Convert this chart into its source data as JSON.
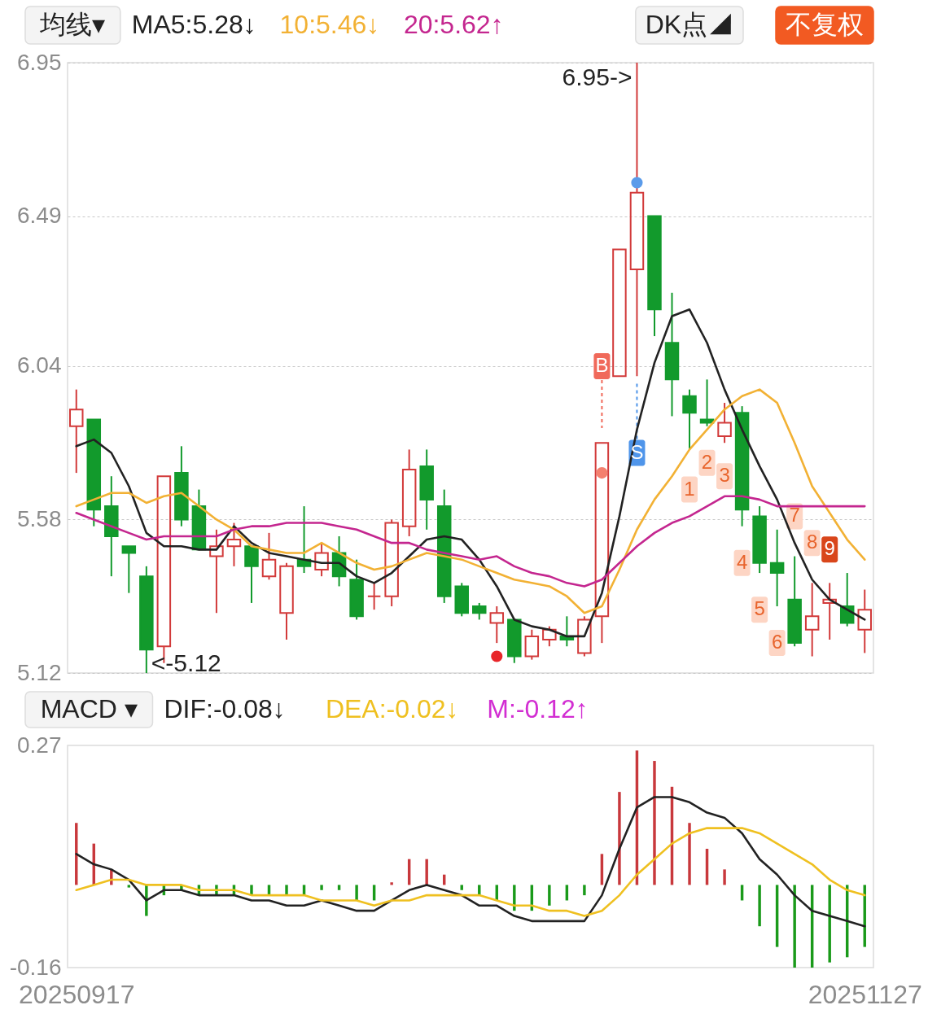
{
  "chart_data": [
    {
      "type": "candlestick",
      "categories": [
        "20250917",
        null,
        null,
        null,
        null,
        null,
        null,
        null,
        null,
        null,
        null,
        null,
        null,
        null,
        null,
        null,
        null,
        null,
        null,
        null,
        null,
        null,
        null,
        null,
        null,
        null,
        null,
        null,
        null,
        null,
        null,
        null,
        null,
        null,
        null,
        null,
        null,
        null,
        null,
        null,
        null,
        null,
        null,
        null,
        null,
        "20251127"
      ],
      "ohlc": [
        [
          5.86,
          5.97,
          5.72,
          5.91
        ],
        [
          5.88,
          5.88,
          5.56,
          5.61
        ],
        [
          5.62,
          5.71,
          5.41,
          5.53
        ],
        [
          5.5,
          5.5,
          5.36,
          5.48
        ],
        [
          5.41,
          5.44,
          5.12,
          5.19
        ],
        [
          5.2,
          5.71,
          5.15,
          5.71
        ],
        [
          5.72,
          5.8,
          5.56,
          5.58
        ],
        [
          5.62,
          5.67,
          5.49,
          5.49
        ],
        [
          5.47,
          5.55,
          5.3,
          5.5
        ],
        [
          5.5,
          5.57,
          5.44,
          5.52
        ],
        [
          5.5,
          5.5,
          5.33,
          5.44
        ],
        [
          5.41,
          5.54,
          5.4,
          5.46
        ],
        [
          5.3,
          5.45,
          5.22,
          5.44
        ],
        [
          5.46,
          5.62,
          5.42,
          5.44
        ],
        [
          5.43,
          5.51,
          5.41,
          5.48
        ],
        [
          5.48,
          5.53,
          5.38,
          5.41
        ],
        [
          5.4,
          5.46,
          5.28,
          5.29
        ],
        [
          5.35,
          5.39,
          5.31,
          5.35
        ],
        [
          5.35,
          5.58,
          5.32,
          5.57
        ],
        [
          5.56,
          5.79,
          5.53,
          5.73
        ],
        [
          5.74,
          5.79,
          5.55,
          5.64
        ],
        [
          5.62,
          5.67,
          5.33,
          5.35
        ],
        [
          5.38,
          5.39,
          5.29,
          5.3
        ],
        [
          5.32,
          5.33,
          5.28,
          5.3
        ],
        [
          5.27,
          5.32,
          5.21,
          5.3
        ],
        [
          5.28,
          5.28,
          5.15,
          5.17
        ],
        [
          5.17,
          5.25,
          5.16,
          5.23
        ],
        [
          5.22,
          5.26,
          5.2,
          5.25
        ],
        [
          5.23,
          5.29,
          5.2,
          5.22
        ],
        [
          5.18,
          5.29,
          5.17,
          5.28
        ],
        [
          5.29,
          5.81,
          5.21,
          5.81
        ],
        [
          6.01,
          6.39,
          6.01,
          6.39
        ],
        [
          6.33,
          6.95,
          6.01,
          6.56
        ],
        [
          6.49,
          6.49,
          6.13,
          6.21
        ],
        [
          6.11,
          6.26,
          5.89,
          6.0
        ],
        [
          5.95,
          5.97,
          5.79,
          5.9
        ],
        [
          5.88,
          6.0,
          5.86,
          5.87
        ],
        [
          5.83,
          5.93,
          5.81,
          5.87
        ],
        [
          5.9,
          5.92,
          5.56,
          5.61
        ],
        [
          5.59,
          5.62,
          5.42,
          5.45
        ],
        [
          5.45,
          5.55,
          5.32,
          5.42
        ],
        [
          5.34,
          5.47,
          5.2,
          5.21
        ],
        [
          5.25,
          5.39,
          5.17,
          5.29
        ],
        [
          5.33,
          5.39,
          5.22,
          5.34
        ],
        [
          5.32,
          5.42,
          5.26,
          5.27
        ],
        [
          5.25,
          5.37,
          5.18,
          5.31
        ]
      ],
      "colors": [
        "#d23a3a",
        "#129a2c",
        "#129a2c",
        "#129a2c",
        "#129a2c",
        "#d23a3a",
        "#129a2c",
        "#129a2c",
        "#d23a3a",
        "#d23a3a",
        "#129a2c",
        "#d23a3a",
        "#d23a3a",
        "#129a2c",
        "#d23a3a",
        "#129a2c",
        "#129a2c",
        "#d23a3a",
        "#d23a3a",
        "#d23a3a",
        "#129a2c",
        "#129a2c",
        "#129a2c",
        "#129a2c",
        "#d23a3a",
        "#129a2c",
        "#d23a3a",
        "#d23a3a",
        "#129a2c",
        "#d23a3a",
        "#d23a3a",
        "#d23a3a",
        "#d23a3a",
        "#129a2c",
        "#129a2c",
        "#129a2c",
        "#129a2c",
        "#d23a3a",
        "#129a2c",
        "#129a2c",
        "#129a2c",
        "#129a2c",
        "#d23a3a",
        "#d23a3a",
        "#129a2c",
        "#d23a3a"
      ],
      "series": [
        {
          "name": "MA5:5.28↓",
          "type": "line",
          "color": "#222222",
          "values": [
            5.8,
            5.82,
            5.78,
            5.68,
            5.54,
            5.5,
            5.5,
            5.49,
            5.49,
            5.56,
            5.51,
            5.48,
            5.47,
            5.46,
            5.45,
            5.45,
            5.41,
            5.39,
            5.42,
            5.47,
            5.52,
            5.53,
            5.52,
            5.46,
            5.38,
            5.28,
            5.26,
            5.25,
            5.23,
            5.23,
            5.36,
            5.59,
            5.85,
            6.05,
            6.19,
            6.21,
            6.11,
            5.97,
            5.85,
            5.74,
            5.64,
            5.51,
            5.4,
            5.34,
            5.31,
            5.28
          ]
        },
        {
          "name": "10:5.46↓",
          "type": "line",
          "color": "#f2b134",
          "values": [
            5.62,
            5.64,
            5.66,
            5.66,
            5.63,
            5.65,
            5.66,
            5.62,
            5.58,
            5.55,
            5.5,
            5.49,
            5.48,
            5.48,
            5.51,
            5.48,
            5.45,
            5.43,
            5.44,
            5.46,
            5.48,
            5.47,
            5.46,
            5.44,
            5.42,
            5.4,
            5.39,
            5.38,
            5.35,
            5.3,
            5.32,
            5.43,
            5.55,
            5.64,
            5.71,
            5.79,
            5.85,
            5.91,
            5.95,
            5.97,
            5.93,
            5.81,
            5.68,
            5.6,
            5.52,
            5.46
          ]
        },
        {
          "name": "20:5.62↑",
          "type": "line",
          "color": "#c4268f",
          "values": [
            5.6,
            5.58,
            5.56,
            5.54,
            5.52,
            5.53,
            5.53,
            5.53,
            5.53,
            5.55,
            5.56,
            5.56,
            5.57,
            5.57,
            5.57,
            5.56,
            5.55,
            5.53,
            5.51,
            5.51,
            5.49,
            5.48,
            5.47,
            5.46,
            5.47,
            5.44,
            5.42,
            5.41,
            5.39,
            5.38,
            5.4,
            5.45,
            5.5,
            5.54,
            5.57,
            5.59,
            5.62,
            5.65,
            5.65,
            5.64,
            5.62,
            5.62,
            5.62,
            5.62,
            5.62,
            5.62
          ]
        },
        {
          "type": "scatter",
          "marker": "circle",
          "colors": [
            null,
            null,
            null,
            null,
            null,
            null,
            null,
            null,
            null,
            null,
            null,
            null,
            null,
            null,
            null,
            null,
            null,
            null,
            null,
            null,
            null,
            null,
            null,
            null,
            "#e8262a",
            null,
            null,
            null,
            null,
            null,
            "#f4806e",
            null,
            "#5b9bea",
            null,
            null,
            null,
            null,
            null,
            null,
            null,
            null,
            null,
            null,
            null,
            null,
            null
          ],
          "values": [
            null,
            null,
            null,
            null,
            null,
            null,
            null,
            null,
            null,
            null,
            null,
            null,
            null,
            null,
            null,
            null,
            null,
            null,
            null,
            null,
            null,
            null,
            null,
            null,
            5.17,
            null,
            null,
            null,
            null,
            null,
            5.72,
            null,
            6.59,
            null,
            null,
            null,
            null,
            null,
            null,
            null,
            null,
            null,
            null,
            null,
            null,
            null
          ]
        },
        {
          "name": "B",
          "type": "scatter",
          "marker": "square",
          "color": "#f0695a",
          "values": [
            null,
            null,
            null,
            null,
            null,
            null,
            null,
            null,
            null,
            null,
            null,
            null,
            null,
            null,
            null,
            null,
            null,
            null,
            null,
            null,
            null,
            null,
            null,
            null,
            null,
            null,
            null,
            null,
            null,
            null,
            6.04,
            null,
            null,
            null,
            null,
            null,
            null,
            null,
            null,
            null,
            null,
            null,
            null,
            null,
            null,
            null
          ]
        },
        {
          "name": "S",
          "type": "scatter",
          "marker": "square",
          "color": "#4f95ea",
          "values": [
            null,
            null,
            null,
            null,
            null,
            null,
            null,
            null,
            null,
            null,
            null,
            null,
            null,
            null,
            null,
            null,
            null,
            null,
            null,
            null,
            null,
            null,
            null,
            null,
            null,
            null,
            null,
            null,
            null,
            null,
            null,
            null,
            5.78,
            null,
            null,
            null,
            null,
            null,
            null,
            null,
            null,
            null,
            null,
            null,
            null,
            null
          ]
        },
        {
          "name": "1",
          "type": "scatter",
          "marker": "square",
          "color": "#fdd5c4",
          "values": [
            null,
            null,
            null,
            null,
            null,
            null,
            null,
            null,
            null,
            null,
            null,
            null,
            null,
            null,
            null,
            null,
            null,
            null,
            null,
            null,
            null,
            null,
            null,
            null,
            null,
            null,
            null,
            null,
            null,
            null,
            null,
            null,
            null,
            null,
            null,
            5.67,
            null,
            null,
            null,
            null,
            null,
            null,
            null,
            null,
            null,
            null
          ]
        },
        {
          "name": "2",
          "type": "scatter",
          "marker": "square",
          "color": "#fdd5c4",
          "values": [
            null,
            null,
            null,
            null,
            null,
            null,
            null,
            null,
            null,
            null,
            null,
            null,
            null,
            null,
            null,
            null,
            null,
            null,
            null,
            null,
            null,
            null,
            null,
            null,
            null,
            null,
            null,
            null,
            null,
            null,
            null,
            null,
            null,
            null,
            null,
            null,
            5.75,
            null,
            null,
            null,
            null,
            null,
            null,
            null,
            null,
            null
          ]
        },
        {
          "name": "3",
          "type": "scatter",
          "marker": "square",
          "color": "#fdd5c4",
          "values": [
            null,
            null,
            null,
            null,
            null,
            null,
            null,
            null,
            null,
            null,
            null,
            null,
            null,
            null,
            null,
            null,
            null,
            null,
            null,
            null,
            null,
            null,
            null,
            null,
            null,
            null,
            null,
            null,
            null,
            null,
            null,
            null,
            null,
            null,
            null,
            null,
            null,
            5.71,
            null,
            null,
            null,
            null,
            null,
            null,
            null,
            null
          ]
        },
        {
          "name": "4",
          "type": "scatter",
          "marker": "square",
          "color": "#fdd5c4",
          "values": [
            null,
            null,
            null,
            null,
            null,
            null,
            null,
            null,
            null,
            null,
            null,
            null,
            null,
            null,
            null,
            null,
            null,
            null,
            null,
            null,
            null,
            null,
            null,
            null,
            null,
            null,
            null,
            null,
            null,
            null,
            null,
            null,
            null,
            null,
            null,
            null,
            null,
            null,
            5.45,
            null,
            null,
            null,
            null,
            null,
            null,
            null
          ]
        },
        {
          "name": "5",
          "type": "scatter",
          "marker": "square",
          "color": "#fdd5c4",
          "values": [
            null,
            null,
            null,
            null,
            null,
            null,
            null,
            null,
            null,
            null,
            null,
            null,
            null,
            null,
            null,
            null,
            null,
            null,
            null,
            null,
            null,
            null,
            null,
            null,
            null,
            null,
            null,
            null,
            null,
            null,
            null,
            null,
            null,
            null,
            null,
            null,
            null,
            null,
            null,
            5.31,
            null,
            null,
            null,
            null,
            null,
            null
          ]
        },
        {
          "name": "6",
          "type": "scatter",
          "marker": "square",
          "color": "#fdd5c4",
          "values": [
            null,
            null,
            null,
            null,
            null,
            null,
            null,
            null,
            null,
            null,
            null,
            null,
            null,
            null,
            null,
            null,
            null,
            null,
            null,
            null,
            null,
            null,
            null,
            null,
            null,
            null,
            null,
            null,
            null,
            null,
            null,
            null,
            null,
            null,
            null,
            null,
            null,
            null,
            null,
            null,
            5.21,
            null,
            null,
            null,
            null,
            null
          ]
        },
        {
          "name": "7",
          "type": "scatter",
          "marker": "square",
          "color": "#fdd5c4",
          "values": [
            null,
            null,
            null,
            null,
            null,
            null,
            null,
            null,
            null,
            null,
            null,
            null,
            null,
            null,
            null,
            null,
            null,
            null,
            null,
            null,
            null,
            null,
            null,
            null,
            null,
            null,
            null,
            null,
            null,
            null,
            null,
            null,
            null,
            null,
            null,
            null,
            null,
            null,
            null,
            null,
            null,
            5.59,
            null,
            null,
            null,
            null
          ]
        },
        {
          "name": "8",
          "type": "scatter",
          "marker": "square",
          "color": "#fdd5c4",
          "values": [
            null,
            null,
            null,
            null,
            null,
            null,
            null,
            null,
            null,
            null,
            null,
            null,
            null,
            null,
            null,
            null,
            null,
            null,
            null,
            null,
            null,
            null,
            null,
            null,
            null,
            null,
            null,
            null,
            null,
            null,
            null,
            null,
            null,
            null,
            null,
            null,
            null,
            null,
            null,
            null,
            null,
            null,
            5.51,
            null,
            null,
            null
          ]
        },
        {
          "name": "9",
          "type": "scatter",
          "marker": "square",
          "color": "#d9461b",
          "values": [
            null,
            null,
            null,
            null,
            null,
            null,
            null,
            null,
            null,
            null,
            null,
            null,
            null,
            null,
            null,
            null,
            null,
            null,
            null,
            null,
            null,
            null,
            null,
            null,
            null,
            null,
            null,
            null,
            null,
            null,
            null,
            null,
            null,
            null,
            null,
            null,
            null,
            null,
            null,
            null,
            null,
            null,
            null,
            5.49,
            null,
            null
          ]
        }
      ],
      "ylim": [
        5.12,
        6.95
      ],
      "yticks": [
        5.12,
        5.58,
        6.04,
        6.49,
        6.95
      ],
      "grid": "y",
      "legend": "top",
      "tick_labels": "y",
      "annotations": [
        "均线▾",
        "DK点◢",
        "不复权",
        "6.95->",
        "<-5.12"
      ]
    },
    {
      "type": "line",
      "categories": [
        "20250917",
        null,
        null,
        null,
        null,
        null,
        null,
        null,
        null,
        null,
        null,
        null,
        null,
        null,
        null,
        null,
        null,
        null,
        null,
        null,
        null,
        null,
        null,
        null,
        null,
        null,
        null,
        null,
        null,
        null,
        null,
        null,
        null,
        null,
        null,
        null,
        null,
        null,
        null,
        null,
        null,
        null,
        null,
        null,
        null,
        "20251127"
      ],
      "series": [
        {
          "name": "DIF:-0.08↓",
          "color": "#222222",
          "values": [
            0.06,
            0.04,
            0.03,
            0.01,
            -0.03,
            -0.01,
            -0.01,
            -0.02,
            -0.02,
            -0.02,
            -0.03,
            -0.03,
            -0.04,
            -0.04,
            -0.03,
            -0.04,
            -0.05,
            -0.05,
            -0.03,
            -0.01,
            0.0,
            -0.01,
            -0.02,
            -0.04,
            -0.04,
            -0.06,
            -0.07,
            -0.07,
            -0.07,
            -0.07,
            -0.02,
            0.07,
            0.15,
            0.17,
            0.17,
            0.16,
            0.14,
            0.13,
            0.1,
            0.05,
            0.02,
            -0.02,
            -0.05,
            -0.06,
            -0.07,
            -0.08
          ]
        },
        {
          "name": "DEA:-0.02↓",
          "color": "#efc020",
          "values": [
            -0.01,
            0.0,
            0.01,
            0.01,
            0.0,
            0.0,
            0.0,
            -0.01,
            -0.01,
            -0.01,
            -0.02,
            -0.02,
            -0.02,
            -0.02,
            -0.03,
            -0.03,
            -0.03,
            -0.04,
            -0.03,
            -0.03,
            -0.02,
            -0.02,
            -0.02,
            -0.02,
            -0.03,
            -0.04,
            -0.04,
            -0.05,
            -0.05,
            -0.06,
            -0.05,
            -0.02,
            0.02,
            0.05,
            0.08,
            0.1,
            0.11,
            0.11,
            0.11,
            0.1,
            0.08,
            0.06,
            0.04,
            0.01,
            -0.01,
            -0.02
          ]
        },
        {
          "name": "M:-0.12↑",
          "type": "bar",
          "color": "#d22ed2",
          "colors": [
            "#c8383c",
            "#c8383c",
            "#c8383c",
            "#1a9a1a",
            "#1a9a1a",
            "#1a9a1a",
            "#1a9a1a",
            "#1a9a1a",
            "#1a9a1a",
            "#1a9a1a",
            "#1a9a1a",
            "#1a9a1a",
            "#1a9a1a",
            "#1a9a1a",
            "#1a9a1a",
            "#1a9a1a",
            "#1a9a1a",
            "#1a9a1a",
            "#c8383c",
            "#c8383c",
            "#c8383c",
            "#c8383c",
            "#1a9a1a",
            "#1a9a1a",
            "#1a9a1a",
            "#1a9a1a",
            "#1a9a1a",
            "#1a9a1a",
            "#1a9a1a",
            "#1a9a1a",
            "#c8383c",
            "#c8383c",
            "#c8383c",
            "#c8383c",
            "#c8383c",
            "#c8383c",
            "#c8383c",
            "#c8383c",
            "#1a9a1a",
            "#1a9a1a",
            "#1a9a1a",
            "#1a9a1a",
            "#1a9a1a",
            "#1a9a1a",
            "#1a9a1a",
            "#1a9a1a"
          ],
          "values": [
            0.12,
            0.08,
            0.03,
            -0.005,
            -0.06,
            -0.02,
            -0.01,
            -0.02,
            -0.02,
            -0.02,
            -0.02,
            -0.02,
            -0.02,
            -0.02,
            -0.01,
            -0.01,
            -0.03,
            -0.03,
            0.005,
            0.05,
            0.05,
            0.02,
            -0.01,
            -0.02,
            -0.03,
            -0.05,
            -0.05,
            -0.04,
            -0.03,
            -0.02,
            0.06,
            0.18,
            0.26,
            0.24,
            0.19,
            0.12,
            0.07,
            0.03,
            -0.03,
            -0.08,
            -0.12,
            -0.16,
            -0.16,
            -0.15,
            -0.14,
            -0.12
          ]
        }
      ],
      "ylim": [
        -0.16,
        0.27
      ],
      "yticks": [
        -0.16,
        0.27
      ],
      "legend": "top",
      "annotations": [
        "MACD ▾"
      ]
    }
  ]
}
